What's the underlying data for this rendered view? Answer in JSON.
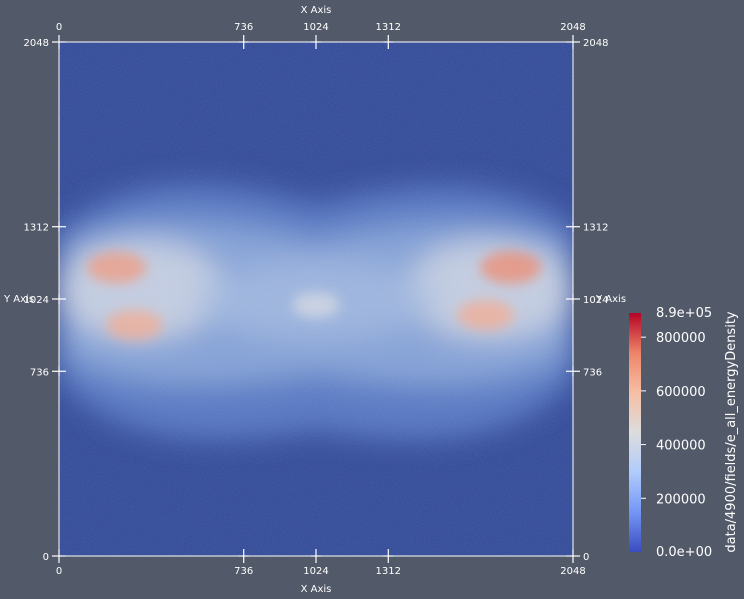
{
  "chart_data": {
    "type": "heatmap",
    "title": "",
    "xlabel": "X Axis",
    "ylabel": "Y Axis",
    "xlim": [
      0,
      2048
    ],
    "ylim": [
      0,
      2048
    ],
    "x_ticks": [
      0,
      736,
      1024,
      1312,
      2048
    ],
    "y_ticks": [
      0,
      736,
      1024,
      1312,
      2048
    ],
    "x_tick_labels": [
      "0",
      "736",
      "1024",
      "1312",
      "2048"
    ],
    "y_tick_labels": [
      "0",
      "736",
      "1024",
      "1312",
      "2048"
    ],
    "colorbar": {
      "title": "data/4900/fields/e_all_energyDensity",
      "range": [
        0,
        890000
      ],
      "max_label": "8.9e+05",
      "min_label": "0.0e+00",
      "ticks": [
        200000,
        400000,
        600000,
        800000
      ],
      "tick_labels": [
        "200000",
        "400000",
        "600000",
        "800000"
      ],
      "colormap": [
        "#3b4cc0",
        "#7396f5",
        "#b0cbfc",
        "#dddcdc",
        "#f6bfa5",
        "#ee8468",
        "#b40426"
      ]
    },
    "field_background": "#2f4796",
    "hotspots": [
      {
        "x": 230,
        "y": 1150,
        "value": 700000
      },
      {
        "x": 300,
        "y": 920,
        "value": 650000
      },
      {
        "x": 1800,
        "y": 1150,
        "value": 740000
      },
      {
        "x": 1700,
        "y": 960,
        "value": 650000
      },
      {
        "x": 1024,
        "y": 1000,
        "value": 420000
      }
    ]
  }
}
